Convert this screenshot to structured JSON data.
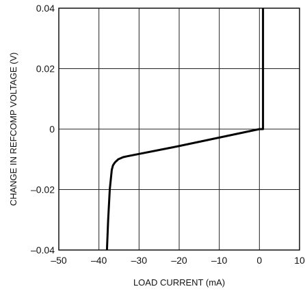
{
  "chart_data": {
    "type": "line",
    "title": "",
    "xlabel": "LOAD CURRENT (mA)",
    "ylabel": "CHANGE IN REFCOMP VOLTAGE (V)",
    "xlim": [
      -50,
      10
    ],
    "ylim": [
      -0.04,
      0.04
    ],
    "x_ticks": [
      -50,
      -40,
      -30,
      -20,
      -10,
      0,
      10
    ],
    "x_tick_labels": [
      "–50",
      "–40",
      "–30",
      "–20",
      "–10",
      "0",
      "10"
    ],
    "y_ticks": [
      -0.04,
      -0.02,
      0,
      0.02,
      0.04
    ],
    "y_tick_labels": [
      "–0.04",
      "–0.02",
      "0",
      "0.02",
      "0.04"
    ],
    "grid": true,
    "series": [
      {
        "color": "#000000",
        "x": [
          -38.0,
          -37.7,
          -37.3,
          -36.8,
          -36.5,
          -36.0,
          -35.2,
          -34.0,
          -33.0,
          -20.0,
          -10.0,
          0.0,
          0.45,
          0.9,
          0.9
        ],
        "y": [
          -0.04,
          -0.03,
          -0.02,
          -0.0135,
          -0.012,
          -0.011,
          -0.01,
          -0.0093,
          -0.009,
          -0.0056,
          -0.0028,
          0.0,
          0.0,
          0.0,
          0.04
        ]
      }
    ]
  }
}
